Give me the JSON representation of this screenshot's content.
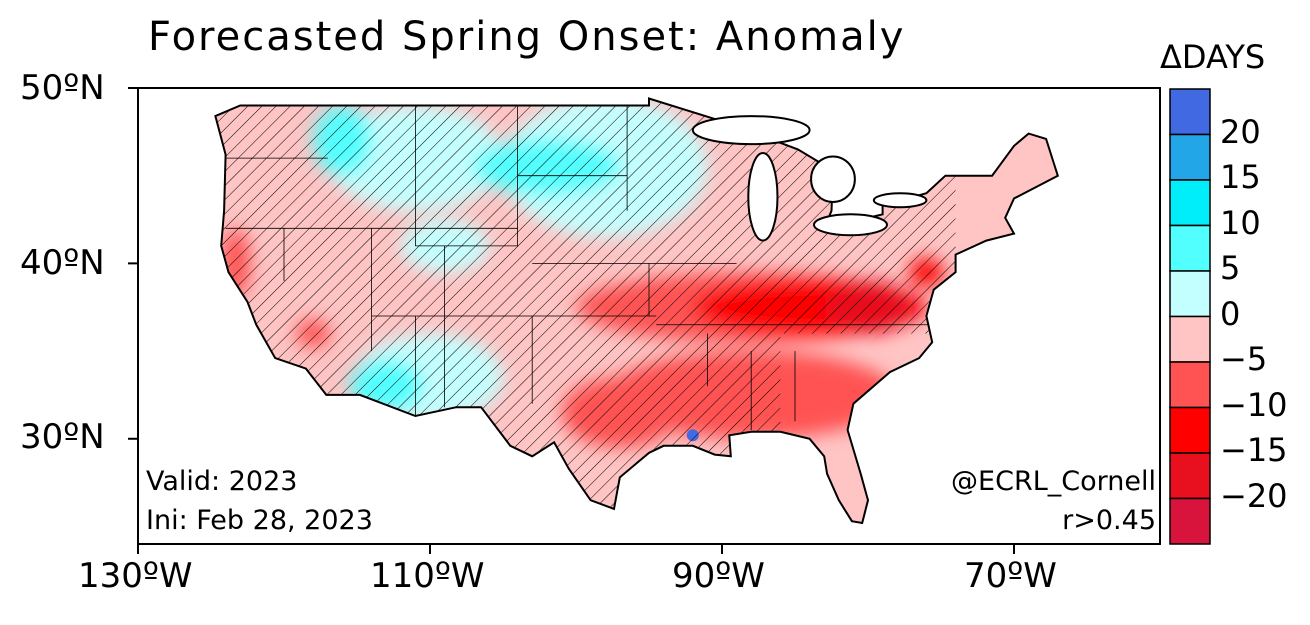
{
  "title": "Forecasted Spring Onset: Anomaly",
  "colorbar": {
    "unit_label": "ΔDAYS",
    "boundaries": [
      "20",
      "15",
      "10",
      "5",
      "0",
      "−5",
      "−10",
      "−15",
      "−20"
    ],
    "colors": [
      "#4169e1",
      "#22a6e8",
      "#00eefa",
      "#52ffff",
      "#c4ffff",
      "#ffc4c4",
      "#ff5252",
      "#ff0000",
      "#e8101f",
      "#d8143c"
    ]
  },
  "axes": {
    "lat_ticks": [
      "50ºN",
      "40ºN",
      "30ºN"
    ],
    "lon_ticks": [
      "130ºW",
      "110ºW",
      "90ºW",
      "70ºW"
    ],
    "lon_range": [
      -130,
      -60
    ],
    "lat_range": [
      24,
      50
    ]
  },
  "annotations": {
    "valid": "Valid: 2023",
    "init": "Ini: Feb 28, 2023",
    "credit": "@ECRL_Cornell",
    "significance": "r>0.45"
  }
}
